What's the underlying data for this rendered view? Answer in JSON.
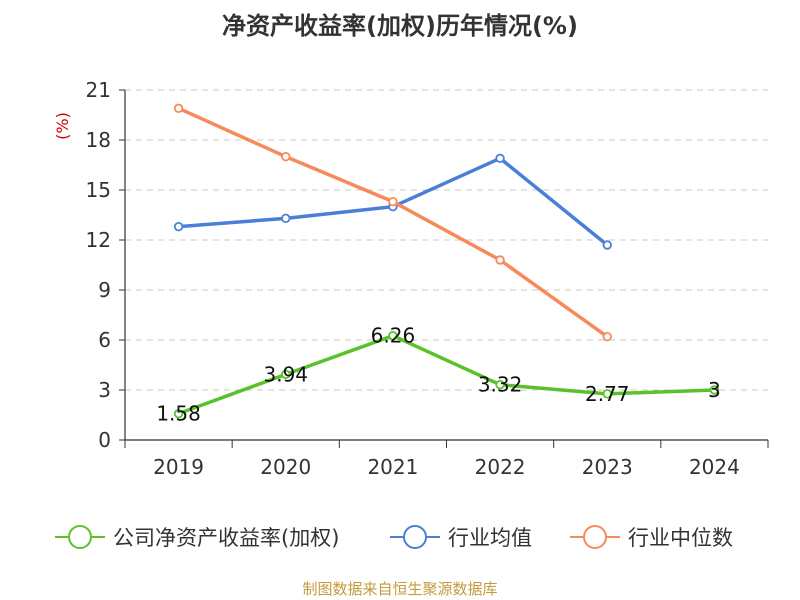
{
  "chart_data": {
    "type": "line",
    "title": "净资产收益率(加权)历年情况(%)",
    "ylabel": "(%)",
    "categories": [
      "2019",
      "2020",
      "2021",
      "2022",
      "2023",
      "2024"
    ],
    "ylim": [
      0,
      21
    ],
    "yticks": [
      0,
      3,
      6,
      9,
      12,
      15,
      18,
      21
    ],
    "grid": true,
    "legend_position": "bottom",
    "series": [
      {
        "name": "公司净资产收益率(加权)",
        "color": "#5ac229",
        "values": [
          1.58,
          3.94,
          6.26,
          3.32,
          2.77,
          3
        ],
        "labels": [
          "1.58",
          "3.94",
          "6.26",
          "3.32",
          "2.77",
          "3"
        ]
      },
      {
        "name": "行业均值",
        "color": "#4a7fd8",
        "values": [
          12.8,
          13.3,
          14.0,
          16.9,
          11.7,
          null
        ]
      },
      {
        "name": "行业中位数",
        "color": "#f78a5a",
        "values": [
          19.9,
          17.0,
          14.3,
          10.8,
          6.2,
          null
        ]
      }
    ],
    "source": "制图数据来自恒生聚源数据库"
  }
}
